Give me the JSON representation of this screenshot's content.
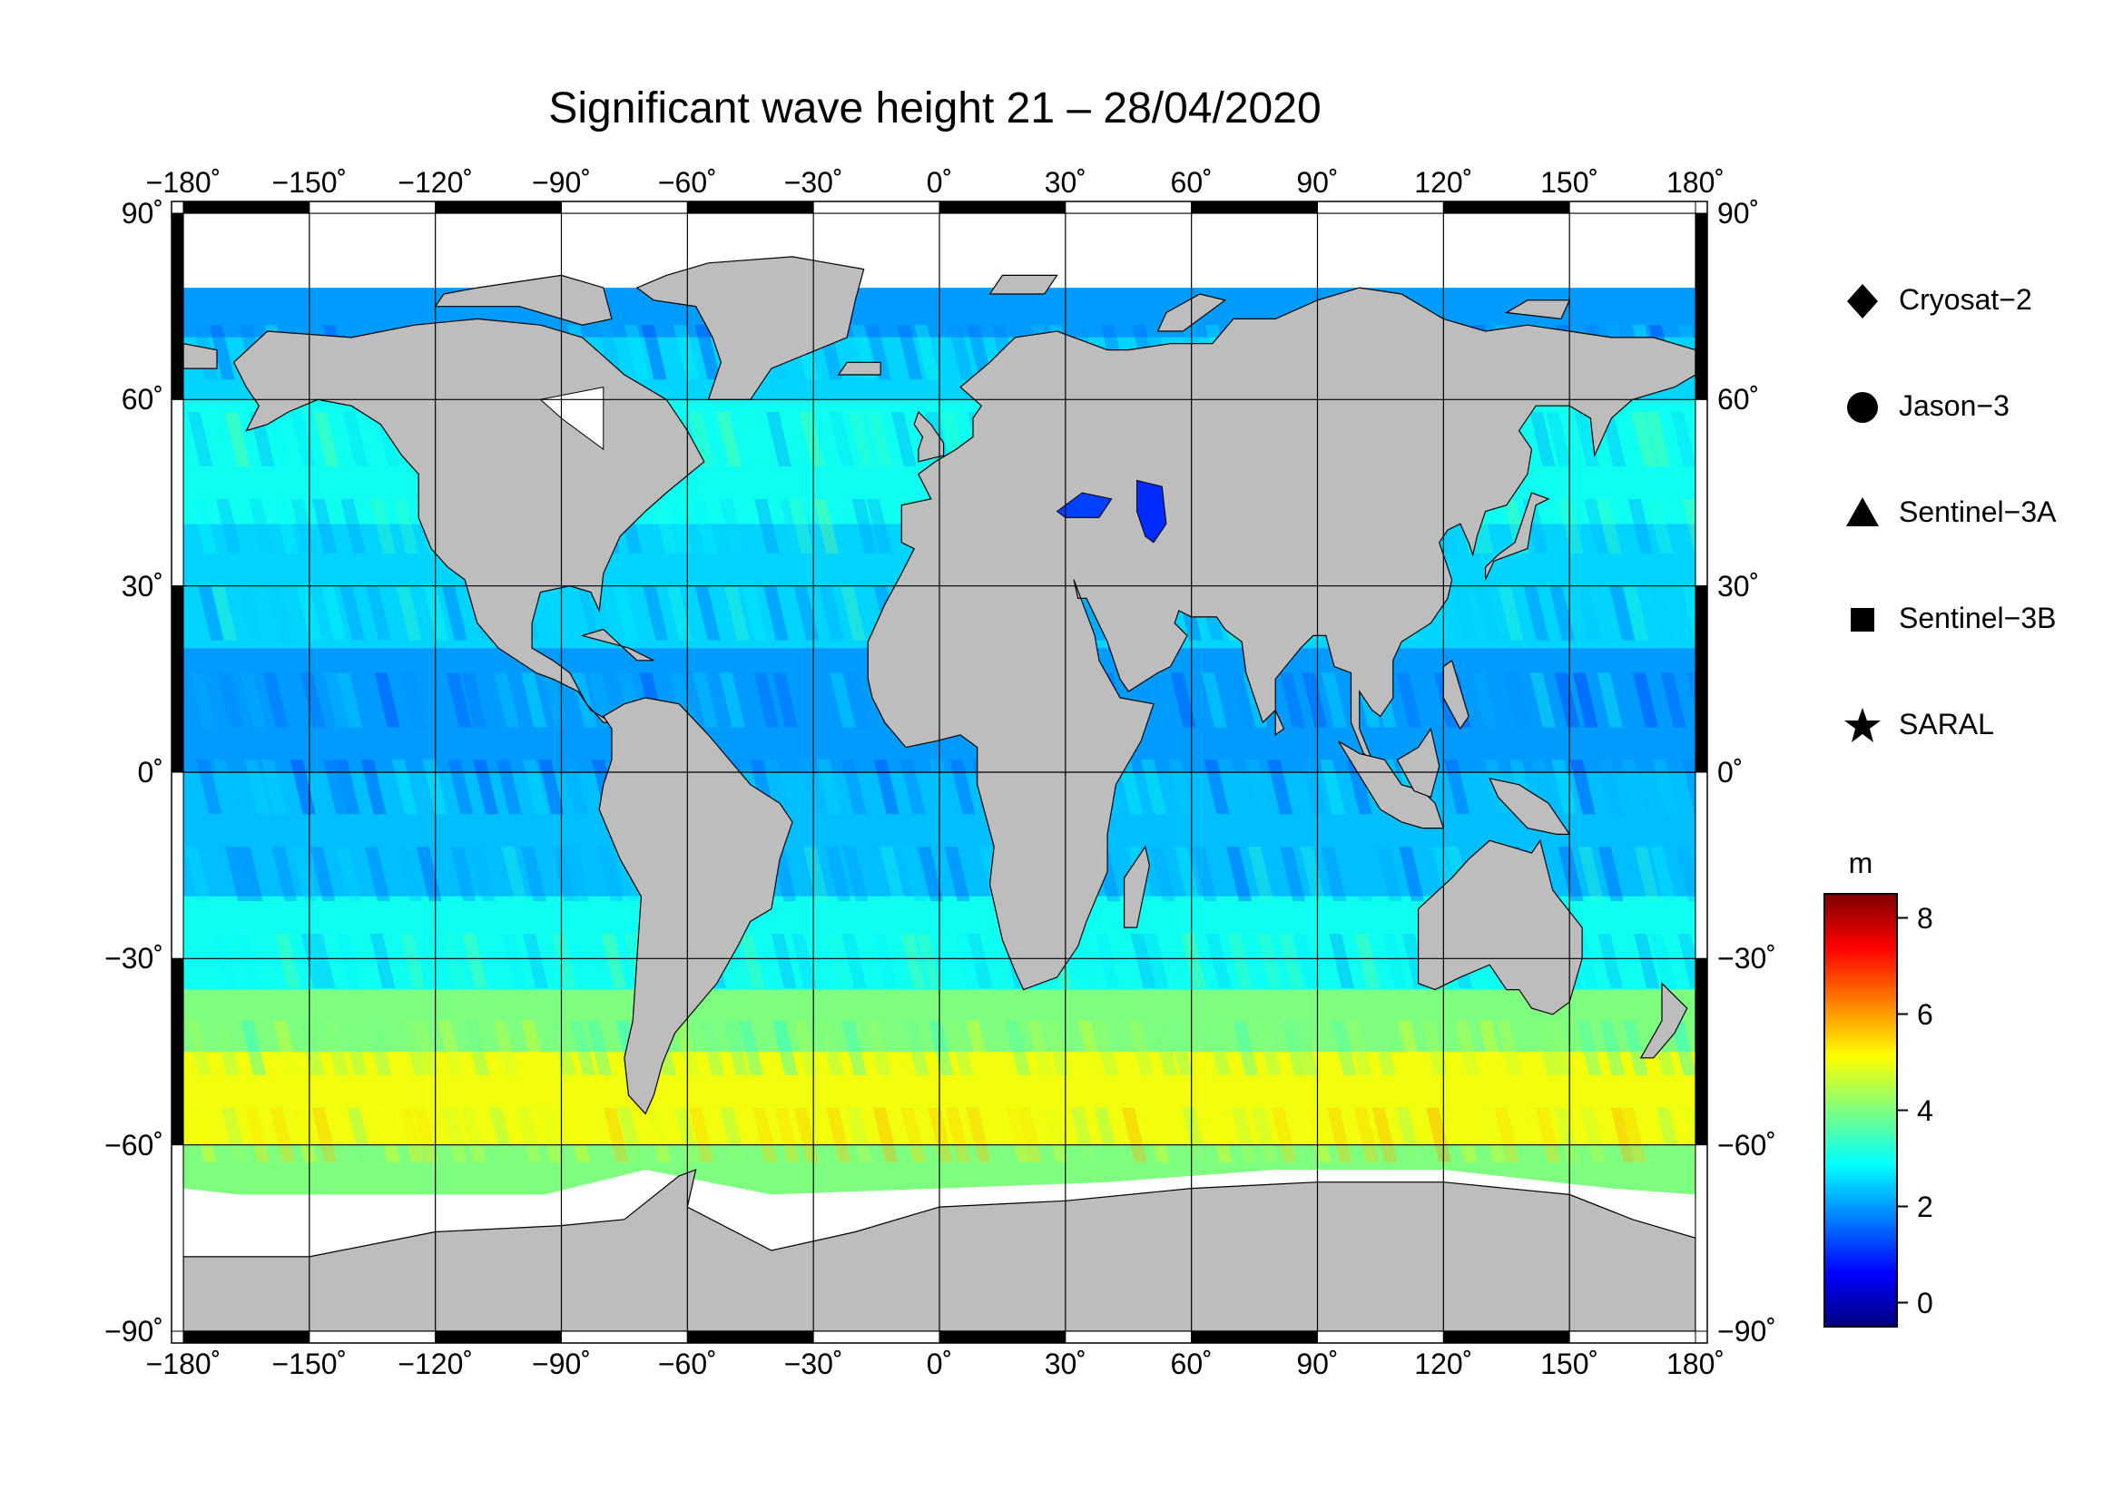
{
  "title": "Significant wave height 21 – 28/04/2020",
  "map": {
    "projection": "equirectangular",
    "lon_range": [
      -180,
      180
    ],
    "lat_range": [
      -90,
      90
    ],
    "lon_ticks": [
      "−180˚",
      "−150˚",
      "−120˚",
      "−90˚",
      "−60˚",
      "−30˚",
      "0˚",
      "30˚",
      "60˚",
      "90˚",
      "120˚",
      "150˚",
      "180˚"
    ],
    "lon_tick_values": [
      -180,
      -150,
      -120,
      -90,
      -60,
      -30,
      0,
      30,
      60,
      90,
      120,
      150,
      180
    ],
    "lat_ticks": [
      "90˚",
      "60˚",
      "30˚",
      "0˚",
      "−30˚",
      "−60˚",
      "−90˚"
    ],
    "lat_tick_values": [
      90,
      60,
      30,
      0,
      -30,
      -60,
      -90
    ],
    "grid": true,
    "land_color": "#bdbdbd",
    "ice_color": "#ffffff"
  },
  "legend": {
    "placement": "right",
    "items": [
      {
        "label": "Cryosat−2",
        "symbol": "diamond"
      },
      {
        "label": "Jason−3",
        "symbol": "circle"
      },
      {
        "label": "Sentinel−3A",
        "symbol": "triangle"
      },
      {
        "label": "Sentinel−3B",
        "symbol": "square"
      },
      {
        "label": "SARAL",
        "symbol": "star"
      }
    ]
  },
  "colorbar": {
    "unit": "m",
    "min": -0.5,
    "max": 8.5,
    "ticks": [
      "0",
      "2",
      "4",
      "6",
      "8"
    ],
    "tick_values": [
      0,
      2,
      4,
      6,
      8
    ],
    "colormap": [
      "#00007f",
      "#0000ff",
      "#007fff",
      "#00ffff",
      "#7fff7f",
      "#ffff00",
      "#ff7f00",
      "#ff0000",
      "#7f0000"
    ]
  },
  "chart_data": {
    "type": "heatmap",
    "title": "Significant wave height 21 – 28/04/2020",
    "variable": "significant wave height",
    "unit": "m",
    "x_range": [
      -180,
      180
    ],
    "y_range": [
      -90,
      90
    ],
    "z_range": [
      -0.5,
      8.5
    ],
    "bands": [
      {
        "lat": [
          70,
          80
        ],
        "value": 2.0
      },
      {
        "lat": [
          60,
          70
        ],
        "value": 2.5
      },
      {
        "lat": [
          40,
          60
        ],
        "value": 3.0
      },
      {
        "lat": [
          20,
          40
        ],
        "value": 2.5
      },
      {
        "lat": [
          0,
          20
        ],
        "value": 2.0
      },
      {
        "lat": [
          -20,
          0
        ],
        "value": 2.3
      },
      {
        "lat": [
          -35,
          -20
        ],
        "value": 3.0
      },
      {
        "lat": [
          -45,
          -35
        ],
        "value": 4.0
      },
      {
        "lat": [
          -60,
          -45
        ],
        "value": 5.0
      },
      {
        "lat": [
          -68,
          -60
        ],
        "value": 4.0
      }
    ]
  }
}
